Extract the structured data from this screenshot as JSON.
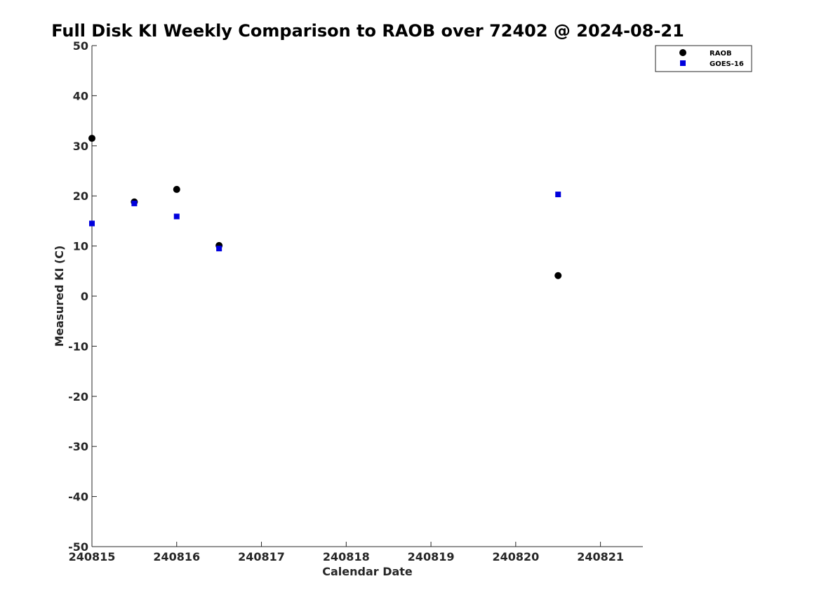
{
  "chart_data": {
    "type": "scatter",
    "title": "Full Disk KI Weekly Comparison to RAOB over 72402 @ 2024-08-21",
    "xlabel": "Calendar Date",
    "ylabel": "Measured KI (C)",
    "xlim": [
      240815,
      240821.5
    ],
    "ylim": [
      -50,
      50
    ],
    "xticks": [
      240815,
      240816,
      240817,
      240818,
      240819,
      240820,
      240821
    ],
    "xtick_labels": [
      "240815",
      "240816",
      "240817",
      "240818",
      "240819",
      "240820",
      "240821"
    ],
    "yticks": [
      -50,
      -40,
      -30,
      -20,
      -10,
      0,
      10,
      20,
      30,
      40,
      50
    ],
    "ytick_labels": [
      "-50",
      "-40",
      "-30",
      "-20",
      "-10",
      "0",
      "10",
      "20",
      "30",
      "40",
      "50"
    ],
    "grid": false,
    "legend_position": "top-right",
    "series": [
      {
        "name": "RAOB",
        "marker": "circle",
        "color": "#000000",
        "points": [
          {
            "x": 240815.0,
            "y": 31.5
          },
          {
            "x": 240815.5,
            "y": 18.8
          },
          {
            "x": 240816.0,
            "y": 21.3
          },
          {
            "x": 240816.5,
            "y": 10.1
          },
          {
            "x": 240820.5,
            "y": 4.1
          }
        ]
      },
      {
        "name": "GOES-16",
        "marker": "square",
        "color": "#0000dd",
        "points": [
          {
            "x": 240815.0,
            "y": 14.5
          },
          {
            "x": 240815.5,
            "y": 18.5
          },
          {
            "x": 240816.0,
            "y": 15.9
          },
          {
            "x": 240816.5,
            "y": 9.5
          },
          {
            "x": 240820.5,
            "y": 20.3
          }
        ]
      }
    ]
  }
}
